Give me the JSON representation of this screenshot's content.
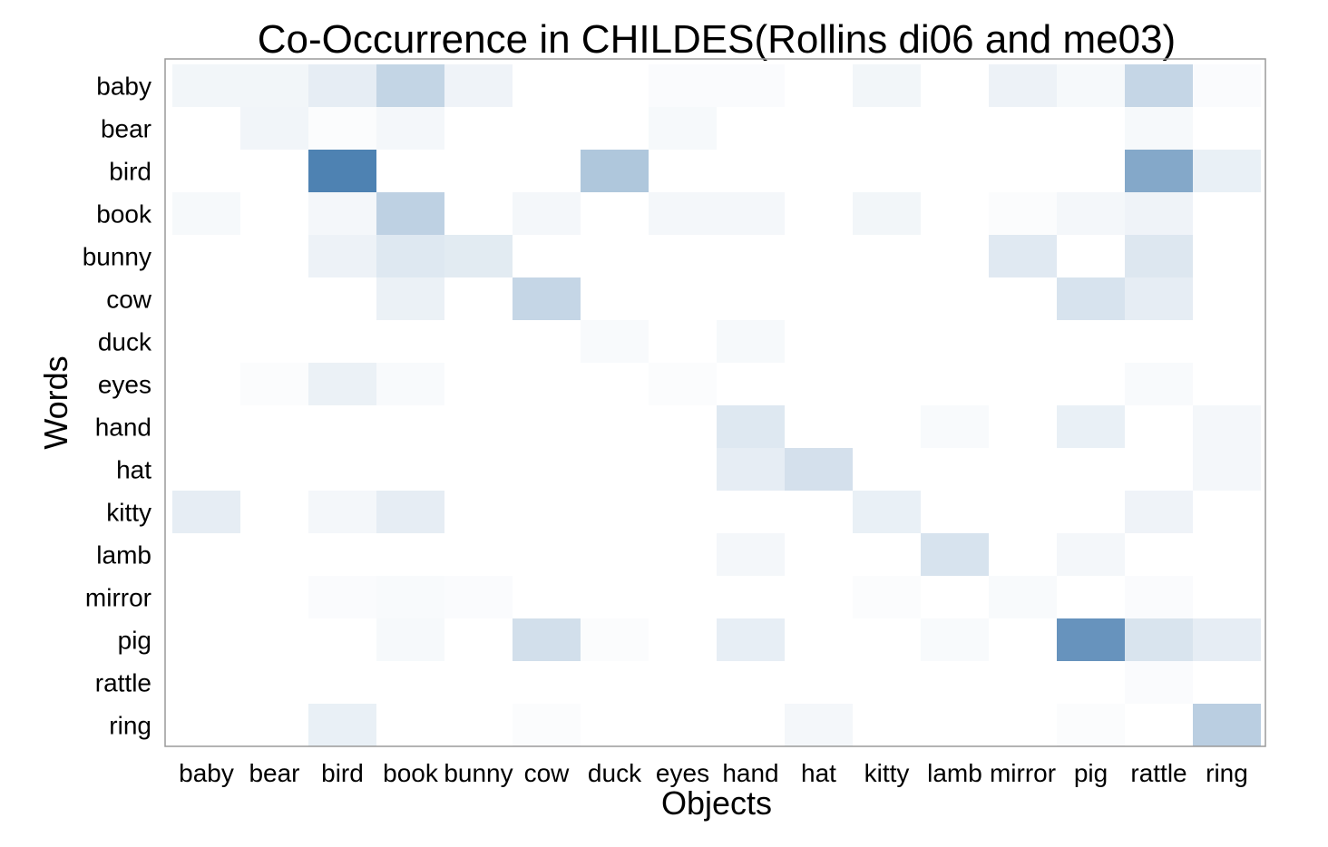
{
  "chart_data": {
    "type": "heatmap",
    "title": "Co-Occurrence in CHILDES(Rollins di06 and me03)",
    "xlabel": "Objects",
    "ylabel": "Words",
    "x_categories": [
      "baby",
      "bear",
      "bird",
      "book",
      "bunny",
      "cow",
      "duck",
      "eyes",
      "hand",
      "hat",
      "kitty",
      "lamb",
      "mirror",
      "pig",
      "rattle",
      "ring"
    ],
    "y_categories": [
      "baby",
      "bear",
      "bird",
      "book",
      "bunny",
      "cow",
      "duck",
      "eyes",
      "hand",
      "hat",
      "kitty",
      "lamb",
      "mirror",
      "pig",
      "rattle",
      "ring"
    ],
    "value_range": [
      0,
      1
    ],
    "grid": false,
    "colors": {
      "low": "#ffffff",
      "high": "#4a7fb0"
    },
    "values": [
      [
        0.07,
        0.07,
        0.14,
        0.33,
        0.09,
        0,
        0,
        0.03,
        0.03,
        0,
        0.07,
        0,
        0.1,
        0.05,
        0.32,
        0.03
      ],
      [
        0,
        0.08,
        0.02,
        0.06,
        0,
        0,
        0,
        0.05,
        0,
        0,
        0,
        0,
        0,
        0,
        0.05,
        0
      ],
      [
        0,
        0,
        0.98,
        0,
        0,
        0,
        0.44,
        0,
        0,
        0,
        0,
        0,
        0,
        0,
        0.68,
        0.12
      ],
      [
        0.05,
        0,
        0.06,
        0.36,
        0,
        0.06,
        0,
        0.06,
        0.06,
        0,
        0.07,
        0,
        0.02,
        0.06,
        0.09,
        0
      ],
      [
        0,
        0,
        0.1,
        0.18,
        0.16,
        0,
        0,
        0,
        0,
        0,
        0,
        0,
        0.17,
        0,
        0.19,
        0
      ],
      [
        0,
        0,
        0,
        0.11,
        0,
        0.32,
        0,
        0,
        0,
        0,
        0,
        0,
        0,
        0.22,
        0.14,
        0
      ],
      [
        0,
        0,
        0,
        0,
        0,
        0,
        0.04,
        0,
        0.05,
        0,
        0,
        0,
        0,
        0,
        0,
        0
      ],
      [
        0,
        0.02,
        0.11,
        0.04,
        0,
        0,
        0,
        0.02,
        0,
        0,
        0,
        0,
        0,
        0,
        0.04,
        0
      ],
      [
        0,
        0,
        0,
        0,
        0,
        0,
        0,
        0,
        0.18,
        0,
        0,
        0.04,
        0,
        0.12,
        0,
        0.06
      ],
      [
        0,
        0,
        0,
        0,
        0,
        0,
        0,
        0,
        0.14,
        0.24,
        0,
        0,
        0,
        0,
        0,
        0.06
      ],
      [
        0.14,
        0,
        0.06,
        0.14,
        0,
        0,
        0,
        0,
        0,
        0,
        0.12,
        0,
        0,
        0,
        0.09,
        0
      ],
      [
        0,
        0,
        0,
        0,
        0,
        0,
        0,
        0,
        0.06,
        0,
        0,
        0.22,
        0,
        0.06,
        0,
        0
      ],
      [
        0,
        0,
        0.03,
        0.04,
        0.03,
        0,
        0,
        0,
        0,
        0,
        0.02,
        0,
        0.04,
        0,
        0.03,
        0
      ],
      [
        0,
        0,
        0,
        0.05,
        0,
        0.25,
        0.02,
        0,
        0.13,
        0,
        0,
        0.04,
        0,
        0.84,
        0.21,
        0.14
      ],
      [
        0,
        0,
        0,
        0,
        0,
        0,
        0,
        0,
        0,
        0,
        0,
        0,
        0,
        0,
        0.03,
        0
      ],
      [
        0,
        0,
        0.12,
        0,
        0,
        0.02,
        0,
        0,
        0,
        0.06,
        0,
        0,
        0,
        0.02,
        0,
        0.38
      ]
    ]
  }
}
